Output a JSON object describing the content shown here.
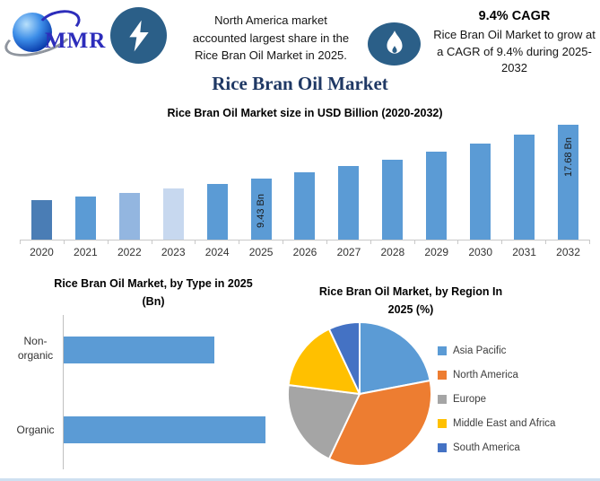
{
  "header": {
    "logo_text": "MMR",
    "blurb": [
      "North America market",
      "accounted largest share in the",
      "Rice Bran Oil Market in 2025."
    ],
    "cagr_heading": "9.4% CAGR",
    "cagr_lines": [
      "Rice Bran Oil Market to grow at",
      "a CAGR of 9.4% during 2025-",
      "2032"
    ]
  },
  "main_title": "Rice Bran Oil Market",
  "chart_data": [
    {
      "type": "bar",
      "title": "Rice Bran Oil Market size in USD Billion (2020-2032)",
      "categories": [
        "2020",
        "2021",
        "2022",
        "2023",
        "2024",
        "2025",
        "2026",
        "2027",
        "2028",
        "2029",
        "2030",
        "2031",
        "2032"
      ],
      "values": [
        6.02,
        6.58,
        7.2,
        7.88,
        8.62,
        9.43,
        10.32,
        11.29,
        12.35,
        13.51,
        14.78,
        16.17,
        17.68
      ],
      "unit": "USD Billion",
      "data_labels": {
        "2025": "9.43 Bn",
        "2032": "17.68 Bn"
      },
      "bar_colors": [
        "#4a7db5",
        "#5b9bd5",
        "#93b6e0",
        "#c7d8ef",
        "#5b9bd5",
        "#5b9bd5",
        "#5b9bd5",
        "#5b9bd5",
        "#5b9bd5",
        "#5b9bd5",
        "#5b9bd5",
        "#5b9bd5",
        "#5b9bd5"
      ],
      "ylim": [
        0,
        17.68
      ],
      "grid": false,
      "legend": "none"
    },
    {
      "type": "bar",
      "orientation": "horizontal",
      "title_lines": [
        "Rice Bran Oil Market, by Type in 2025",
        "(Bn)"
      ],
      "categories": [
        "Non-organic",
        "Organic"
      ],
      "values": [
        4.03,
        5.4
      ],
      "bar_color": "#5b9bd5",
      "grid": false,
      "legend": "none"
    },
    {
      "type": "pie",
      "title_lines": [
        "Rice Bran Oil Market, by Region In",
        "2025 (%)"
      ],
      "labels": [
        "Asia Pacific",
        "North America",
        "Europe",
        "Middle East and Africa",
        "South America"
      ],
      "values": [
        22,
        35,
        20,
        16,
        7
      ],
      "colors": [
        "#5b9bd5",
        "#ed7d31",
        "#a5a5a5",
        "#ffc000",
        "#4472c4"
      ],
      "start_angle_deg": 0,
      "direction": "clockwise",
      "legend_position": "right"
    }
  ],
  "icons": {
    "bolt": "lightning-bolt-icon",
    "flame": "flame-icon",
    "globe": "globe-icon"
  },
  "colors": {
    "badge_blue": "#2b5f88",
    "title_navy": "#1f3864",
    "primary_bar_blue": "#5b9bd5",
    "bottom_strip": "#cfe0f1"
  }
}
